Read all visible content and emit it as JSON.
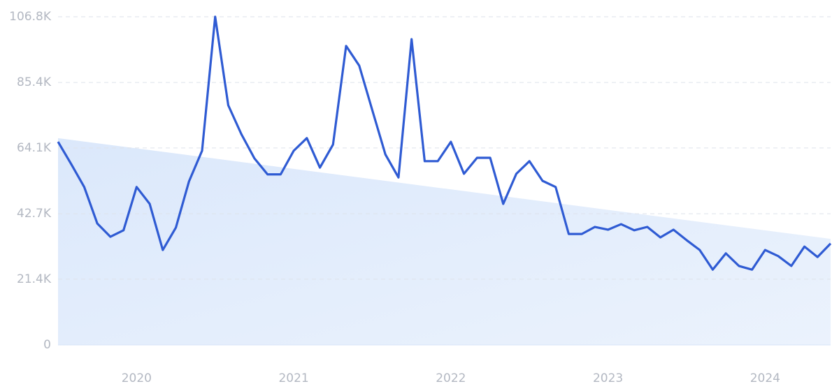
{
  "chart_data": {
    "type": "line",
    "categories": [
      null,
      null,
      null,
      null,
      null,
      null,
      "2020",
      null,
      null,
      null,
      null,
      null,
      null,
      null,
      null,
      null,
      null,
      null,
      "2021",
      null,
      null,
      null,
      null,
      null,
      null,
      null,
      null,
      null,
      null,
      null,
      "2022",
      null,
      null,
      null,
      null,
      null,
      null,
      null,
      null,
      null,
      null,
      null,
      "2023",
      null,
      null,
      null,
      null,
      null,
      null,
      null,
      null,
      null,
      null,
      null,
      "2024",
      null,
      null,
      null,
      null,
      null
    ],
    "values": [
      66100,
      58900,
      51400,
      39500,
      35200,
      37300,
      51400,
      45900,
      30900,
      38200,
      53200,
      63200,
      106800,
      78000,
      68600,
      60700,
      55500,
      55500,
      63200,
      67300,
      57700,
      65200,
      97300,
      90900,
      76400,
      62000,
      54500,
      99500,
      59800,
      59800,
      66100,
      55700,
      60900,
      60900,
      45900,
      55700,
      59800,
      53400,
      51400,
      36100,
      36100,
      38400,
      37500,
      39300,
      37300,
      38400,
      35000,
      37500,
      34100,
      30900,
      24500,
      29800,
      25700,
      24500,
      30900,
      28900,
      25700,
      32000,
      28600,
      33000
    ],
    "color": "#2f5bd3",
    "trend_values": [
      67300,
      34500
    ],
    "trend_color": "#dbe8fb",
    "ylim": [
      0,
      106800
    ],
    "yticks": [
      0,
      {
        "value": 21400,
        "label": "21.4K"
      },
      {
        "value": 42700,
        "label": "42.7K"
      },
      {
        "value": 64100,
        "label": "64.1K"
      },
      {
        "value": 85400,
        "label": "85.4K"
      },
      {
        "value": 106800,
        "label": "106.8K"
      }
    ],
    "grid": true
  }
}
